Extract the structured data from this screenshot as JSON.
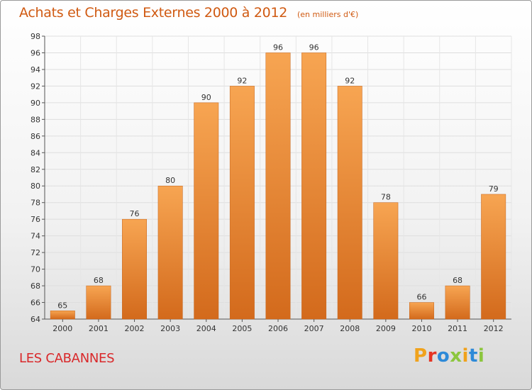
{
  "header": {
    "title": "Achats et Charges Externes 2000 à 2012",
    "unit": "(en milliers d'€)"
  },
  "footer": {
    "place": "LES CABANNES",
    "brand": {
      "letters": [
        "P",
        "r",
        "o",
        "x",
        "i",
        "t",
        "i"
      ],
      "colors": [
        "#f0a21c",
        "#e53524",
        "#2e8ad8",
        "#8cc63e",
        "#f0a21c",
        "#2e8ad8",
        "#8cc63e"
      ]
    }
  },
  "chart_data": {
    "type": "bar",
    "title": "Achats et Charges Externes 2000 à 2012",
    "categories": [
      "2000",
      "2001",
      "2002",
      "2003",
      "2004",
      "2005",
      "2006",
      "2007",
      "2008",
      "2009",
      "2010",
      "2011",
      "2012"
    ],
    "values": [
      65,
      68,
      76,
      80,
      90,
      92,
      96,
      96,
      92,
      78,
      66,
      68,
      79
    ],
    "ylim": [
      64,
      98
    ],
    "yticks": [
      64,
      66,
      68,
      70,
      72,
      74,
      76,
      78,
      80,
      82,
      84,
      86,
      88,
      90,
      92,
      94,
      96,
      98
    ],
    "grid": true,
    "data_labels": true,
    "bar_color_top": "#f7a552",
    "bar_color_bottom": "#d36a1c"
  }
}
